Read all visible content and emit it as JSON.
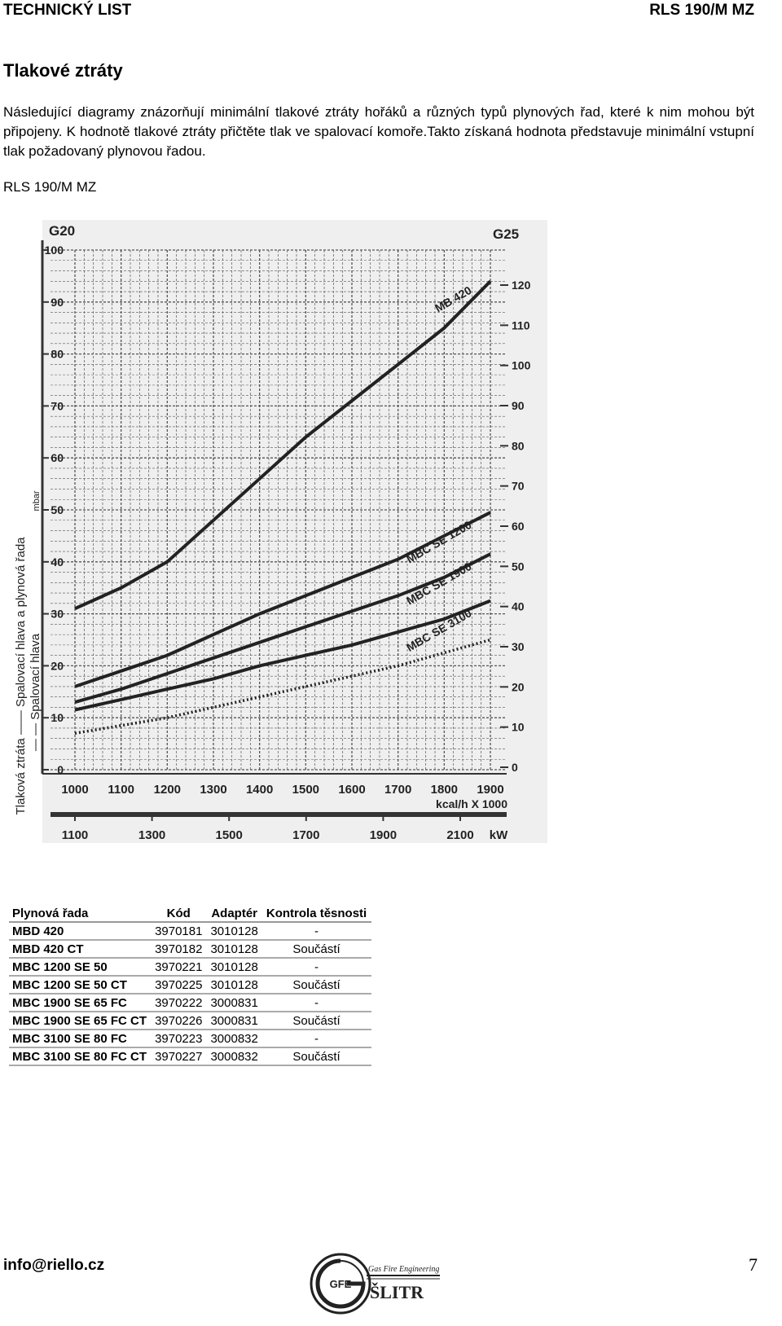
{
  "header": {
    "left": "TECHNICKÝ LIST",
    "right": "RLS 190/M MZ"
  },
  "section_title": "Tlakové ztráty",
  "intro_text": "Následující diagramy znázorňují minimální tlakové ztráty hořáků a různých typů plynových řad, které k nim mohou být připojeny. K hodnotě tlakové ztráty přičtěte tlak ve spalovací komoře.Takto získaná hodnota představuje minimální vstupní tlak požadovaný plynovou řadou.",
  "chart_caption": "RLS 190/M MZ",
  "chart_data": {
    "type": "line",
    "left_axis_title": "G20",
    "right_axis_title": "G25",
    "y_unit": "mbar",
    "y_label_lines": [
      "Tlaková ztráta —— Spalovací hlava a plynová řada",
      "— — Spalovací hlava"
    ],
    "y_ticks": [
      0,
      10,
      20,
      30,
      40,
      50,
      60,
      70,
      80,
      90,
      100
    ],
    "y_ticks_right": [
      0,
      10,
      20,
      30,
      40,
      50,
      60,
      70,
      80,
      90,
      100,
      110,
      120
    ],
    "ylim": [
      0,
      100
    ],
    "x_ticks_kcal": [
      1000,
      1100,
      1200,
      1300,
      1400,
      1500,
      1600,
      1700,
      1800,
      1900
    ],
    "x_unit_kcal": "kcal/h X 1000",
    "x_ticks_kw": [
      1100,
      1300,
      1500,
      1700,
      1900,
      2100
    ],
    "x_unit_kw": "kW",
    "xlim": [
      1000,
      1900
    ],
    "series": [
      {
        "name": "MB 420",
        "style": "solid",
        "x": [
          1000,
          1100,
          1200,
          1300,
          1400,
          1500,
          1600,
          1700,
          1800,
          1900
        ],
        "y": [
          31,
          35,
          40,
          48,
          56,
          64,
          71,
          78,
          85,
          94
        ]
      },
      {
        "name": "MBC SE 1200",
        "style": "solid",
        "x": [
          1000,
          1100,
          1200,
          1300,
          1400,
          1500,
          1600,
          1700,
          1800,
          1900
        ],
        "y": [
          16,
          19,
          22,
          26,
          30,
          33.5,
          37,
          40.5,
          45,
          49.5
        ]
      },
      {
        "name": "MBC SE 1900",
        "style": "solid",
        "x": [
          1000,
          1100,
          1200,
          1300,
          1400,
          1500,
          1600,
          1700,
          1800,
          1900
        ],
        "y": [
          13,
          15.5,
          18.5,
          21.5,
          24.5,
          27.5,
          30.5,
          33.5,
          37,
          41.5
        ]
      },
      {
        "name": "MBC SE 3100",
        "style": "solid",
        "x": [
          1000,
          1100,
          1200,
          1300,
          1400,
          1500,
          1600,
          1700,
          1800,
          1900
        ],
        "y": [
          11.5,
          13.5,
          15.5,
          17.5,
          20,
          22,
          24,
          26.5,
          29,
          32.5
        ]
      },
      {
        "name": "",
        "style": "dotted",
        "x": [
          1000,
          1100,
          1200,
          1300,
          1400,
          1500,
          1600,
          1700,
          1800,
          1900
        ],
        "y": [
          7,
          8.5,
          10,
          12,
          14,
          16,
          18,
          20,
          22.5,
          25
        ]
      }
    ]
  },
  "table": {
    "headers": [
      "Plynová řada",
      "Kód",
      "Adaptér",
      "Kontrola těsnosti"
    ],
    "rows": [
      [
        "MBD 420",
        "3970181",
        "3010128",
        "-"
      ],
      [
        "MBD 420 CT",
        "3970182",
        "3010128",
        "Součástí"
      ],
      [
        "MBC 1200 SE 50",
        "3970221",
        "3010128",
        "-"
      ],
      [
        "MBC 1200 SE 50 CT",
        "3970225",
        "3010128",
        "Součástí"
      ],
      [
        "MBC 1900 SE 65 FC",
        "3970222",
        "3000831",
        "-"
      ],
      [
        "MBC 1900 SE 65 FC CT",
        "3970226",
        "3000831",
        "Součástí"
      ],
      [
        "MBC 3100 SE 80 FC",
        "3970223",
        "3000832",
        "-"
      ],
      [
        "MBC 3100 SE 80 FC CT",
        "3970227",
        "3000832",
        "Součástí"
      ]
    ]
  },
  "footer": {
    "email": "info@riello.cz",
    "page_number": "7"
  },
  "logo": {
    "tagline": "Gas Fire Engineering",
    "name": "ŠLITR",
    "emblem_text": "GFE"
  }
}
